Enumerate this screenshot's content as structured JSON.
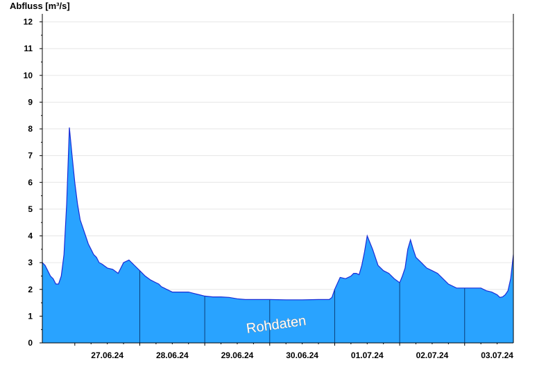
{
  "chart_data": {
    "type": "area",
    "ylabel": "Abfluss [m³/s]",
    "watermark": "Rohdaten",
    "ylim": [
      0,
      12.3
    ],
    "y_ticks": [
      0,
      1,
      2,
      3,
      4,
      5,
      6,
      7,
      8,
      9,
      10,
      11,
      12
    ],
    "xlim": [
      "2024-06-26T12:00",
      "2024-07-03T18:00"
    ],
    "day_labels": [
      "27.06.24",
      "28.06.24",
      "29.06.24",
      "30.06.24",
      "01.07.24",
      "02.07.24",
      "03.07.24"
    ],
    "grid": true,
    "colors": {
      "fill": "#29a3ff",
      "line": "#1a2bd6",
      "axis": "#000000",
      "grid": "#e6e6e6",
      "day_separator": "#0b3f7a"
    },
    "series": [
      {
        "x": [
          "2024-06-26T12:00",
          "2024-06-26T13:00",
          "2024-06-26T14:00",
          "2024-06-26T15:00",
          "2024-06-26T16:00",
          "2024-06-26T17:00",
          "2024-06-26T18:00",
          "2024-06-26T19:00",
          "2024-06-26T20:00",
          "2024-06-26T21:00",
          "2024-06-26T22:00",
          "2024-06-26T23:00",
          "2024-06-27T00:00",
          "2024-06-27T01:00",
          "2024-06-27T02:00",
          "2024-06-27T03:00",
          "2024-06-27T04:00",
          "2024-06-27T05:00",
          "2024-06-27T06:00",
          "2024-06-27T07:00",
          "2024-06-27T08:00",
          "2024-06-27T09:00",
          "2024-06-27T10:00",
          "2024-06-27T12:00",
          "2024-06-27T14:00",
          "2024-06-27T16:00",
          "2024-06-27T18:00",
          "2024-06-27T20:00",
          "2024-06-27T22:00",
          "2024-06-28T00:00",
          "2024-06-28T02:00",
          "2024-06-28T04:00",
          "2024-06-28T06:00",
          "2024-06-28T07:00",
          "2024-06-28T08:00",
          "2024-06-28T09:00",
          "2024-06-28T10:00",
          "2024-06-28T11:00",
          "2024-06-28T12:00",
          "2024-06-28T14:00",
          "2024-06-28T16:00",
          "2024-06-28T18:00",
          "2024-06-28T20:00",
          "2024-06-28T22:00",
          "2024-06-29T00:00",
          "2024-06-29T03:00",
          "2024-06-29T06:00",
          "2024-06-29T09:00",
          "2024-06-29T12:00",
          "2024-06-29T15:00",
          "2024-06-29T18:00",
          "2024-06-29T21:00",
          "2024-06-30T00:00",
          "2024-06-30T06:00",
          "2024-06-30T12:00",
          "2024-06-30T18:00",
          "2024-06-30T22:00",
          "2024-06-30T23:00",
          "2024-07-01T00:00",
          "2024-07-01T02:00",
          "2024-07-01T04:00",
          "2024-07-01T06:00",
          "2024-07-01T07:00",
          "2024-07-01T08:00",
          "2024-07-01T09:00",
          "2024-07-01T10:00",
          "2024-07-01T11:00",
          "2024-07-01T12:00",
          "2024-07-01T14:00",
          "2024-07-01T16:00",
          "2024-07-01T18:00",
          "2024-07-01T20:00",
          "2024-07-01T22:00",
          "2024-07-02T00:00",
          "2024-07-02T01:00",
          "2024-07-02T02:00",
          "2024-07-02T03:00",
          "2024-07-02T04:00",
          "2024-07-02T05:00",
          "2024-07-02T06:00",
          "2024-07-02T08:00",
          "2024-07-02T10:00",
          "2024-07-02T12:00",
          "2024-07-02T14:00",
          "2024-07-02T16:00",
          "2024-07-02T18:00",
          "2024-07-02T21:00",
          "2024-07-03T00:00",
          "2024-07-03T06:00",
          "2024-07-03T08:00",
          "2024-07-03T10:00",
          "2024-07-03T12:00",
          "2024-07-03T13:00",
          "2024-07-03T14:00",
          "2024-07-03T15:00",
          "2024-07-03T16:00",
          "2024-07-03T17:00",
          "2024-07-03T18:00"
        ],
        "y": [
          3.0,
          2.9,
          2.7,
          2.5,
          2.4,
          2.2,
          2.2,
          2.5,
          3.3,
          5.2,
          8.05,
          7.0,
          6.0,
          5.2,
          4.6,
          4.3,
          4.0,
          3.7,
          3.5,
          3.3,
          3.2,
          3.0,
          2.95,
          2.8,
          2.75,
          2.6,
          3.0,
          3.1,
          2.9,
          2.7,
          2.5,
          2.35,
          2.25,
          2.2,
          2.1,
          2.05,
          2.0,
          1.95,
          1.9,
          1.9,
          1.9,
          1.9,
          1.85,
          1.8,
          1.75,
          1.72,
          1.72,
          1.7,
          1.65,
          1.62,
          1.62,
          1.62,
          1.62,
          1.61,
          1.61,
          1.62,
          1.62,
          1.7,
          2.0,
          2.45,
          2.4,
          2.5,
          2.6,
          2.6,
          2.55,
          2.9,
          3.4,
          4.0,
          3.5,
          2.9,
          2.7,
          2.6,
          2.4,
          2.25,
          2.5,
          2.8,
          3.5,
          3.85,
          3.5,
          3.2,
          3.0,
          2.8,
          2.7,
          2.6,
          2.4,
          2.2,
          2.05,
          2.05,
          2.05,
          1.95,
          1.9,
          1.8,
          1.7,
          1.72,
          1.8,
          1.95,
          2.4,
          3.3
        ]
      }
    ]
  }
}
